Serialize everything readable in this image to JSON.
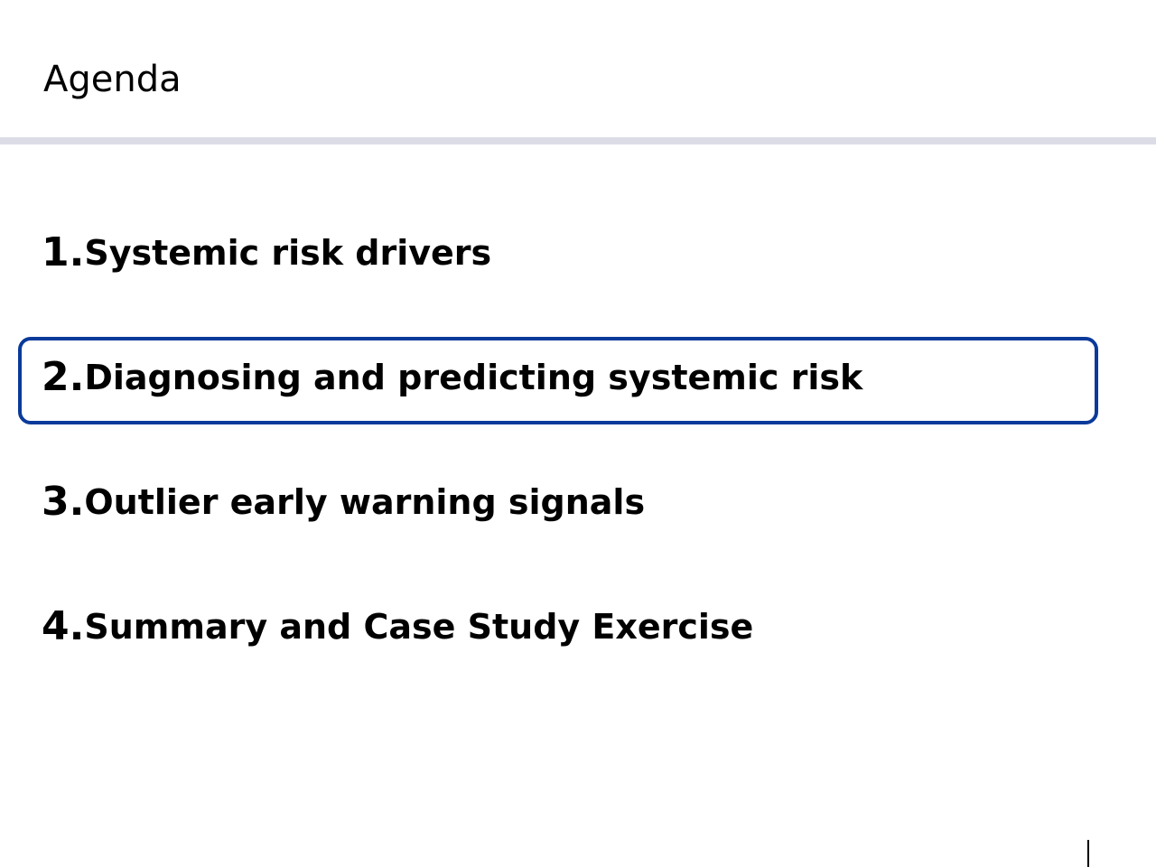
{
  "slide": {
    "title": "Agenda"
  },
  "agenda": {
    "items": [
      {
        "number": "1.",
        "label": "Systemic risk drivers"
      },
      {
        "number": "2.",
        "label": "Diagnosing and predicting systemic risk"
      },
      {
        "number": "3.",
        "label": "Outlier early warning signals"
      },
      {
        "number": "4.",
        "label": "Summary and Case Study Exercise"
      }
    ],
    "highlighted_item": 2
  },
  "colors": {
    "highlight_border": "#0a3a9a",
    "title_rule": "#dcdce6",
    "text": "#000000",
    "background": "#ffffff"
  }
}
